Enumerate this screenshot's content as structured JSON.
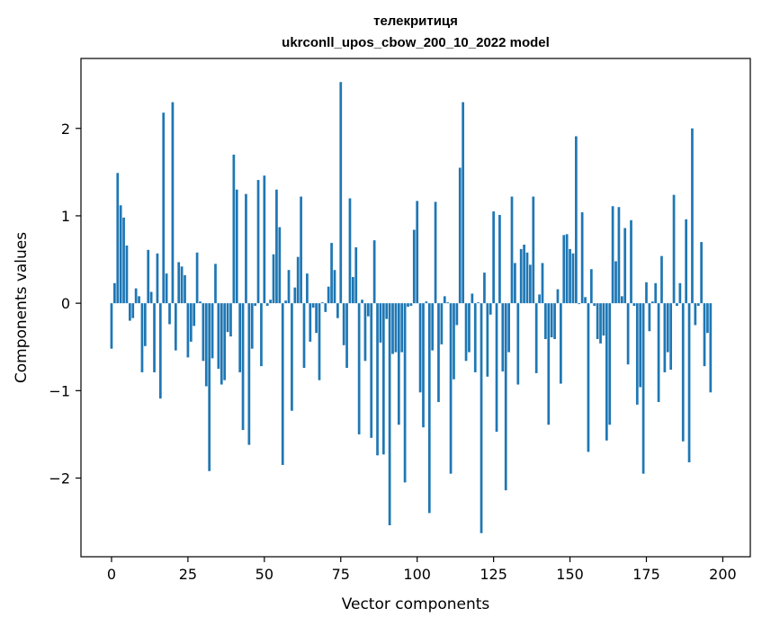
{
  "chart_data": {
    "type": "bar",
    "title_line1": "телекритиця",
    "title_line2": "ukrconll_upos_cbow_200_10_2022 model",
    "xlabel": "Vector components",
    "ylabel": "Components values",
    "xlim": [
      -10,
      209
    ],
    "ylim": [
      -2.9,
      2.8
    ],
    "xticks": [
      0,
      25,
      50,
      75,
      100,
      125,
      150,
      175,
      200
    ],
    "xtick_labels": [
      "0",
      "25",
      "50",
      "75",
      "100",
      "125",
      "150",
      "175",
      "200"
    ],
    "yticks": [
      -2,
      -1,
      0,
      1,
      2
    ],
    "ytick_labels": [
      "−2",
      "−1",
      "0",
      "1",
      "2"
    ],
    "bar_color": "#1f77b4",
    "values": [
      -0.52,
      0.23,
      1.49,
      1.12,
      0.98,
      0.66,
      -0.2,
      -0.17,
      0.17,
      0.08,
      -0.79,
      -0.49,
      0.61,
      0.13,
      -0.79,
      0.57,
      -1.09,
      2.18,
      0.34,
      -0.24,
      2.3,
      -0.54,
      0.47,
      0.42,
      0.32,
      -0.62,
      -0.44,
      -0.26,
      0.58,
      0.02,
      -0.66,
      -0.95,
      -1.92,
      -0.63,
      0.45,
      -0.75,
      -0.93,
      -0.88,
      -0.33,
      -0.38,
      1.7,
      1.3,
      -0.79,
      -1.45,
      1.25,
      -1.62,
      -0.52,
      -0.03,
      1.41,
      -0.72,
      1.46,
      -0.03,
      0.04,
      0.56,
      1.3,
      0.87,
      -1.85,
      0.03,
      0.38,
      -1.23,
      0.18,
      0.53,
      1.22,
      -0.74,
      0.34,
      -0.44,
      -0.05,
      -0.34,
      -0.88,
      0.01,
      -0.1,
      0.19,
      0.69,
      0.38,
      -0.17,
      2.53,
      -0.48,
      -0.74,
      1.2,
      0.3,
      0.64,
      -1.5,
      0.04,
      -0.66,
      -0.15,
      -1.54,
      0.72,
      -1.74,
      -0.45,
      -1.73,
      -0.18,
      -2.54,
      -0.58,
      -0.56,
      -1.39,
      -0.56,
      -2.05,
      -0.04,
      -0.03,
      0.84,
      1.17,
      -1.02,
      -1.42,
      0.02,
      -2.4,
      -0.54,
      1.16,
      -1.13,
      -0.47,
      0.08,
      0.01,
      -1.95,
      -0.87,
      -0.25,
      1.55,
      2.3,
      -0.66,
      -0.56,
      0.11,
      -0.79,
      0.01,
      -2.63,
      0.35,
      -0.84,
      -0.13,
      1.05,
      -1.47,
      1.01,
      -0.78,
      -2.14,
      -0.56,
      1.22,
      0.46,
      -0.93,
      0.62,
      0.67,
      0.58,
      0.44,
      1.22,
      -0.8,
      0.1,
      0.46,
      -0.41,
      -1.39,
      -0.39,
      -0.41,
      0.16,
      -0.92,
      0.78,
      0.79,
      0.62,
      0.57,
      1.91,
      -0.01,
      1.04,
      0.07,
      -1.7,
      0.39,
      -0.03,
      -0.41,
      -0.46,
      -0.37,
      -1.57,
      -1.39,
      1.11,
      0.48,
      1.1,
      0.08,
      0.86,
      -0.7,
      0.95,
      -0.03,
      -1.16,
      -0.96,
      -1.95,
      0.24,
      -0.32,
      0.02,
      0.23,
      -1.13,
      0.54,
      -0.79,
      -0.56,
      -0.76,
      1.24,
      -0.03,
      0.23,
      -1.58,
      0.96,
      -1.82,
      2.0,
      -0.25,
      -0.03,
      0.7,
      -0.72,
      -0.34,
      -1.02
    ]
  }
}
